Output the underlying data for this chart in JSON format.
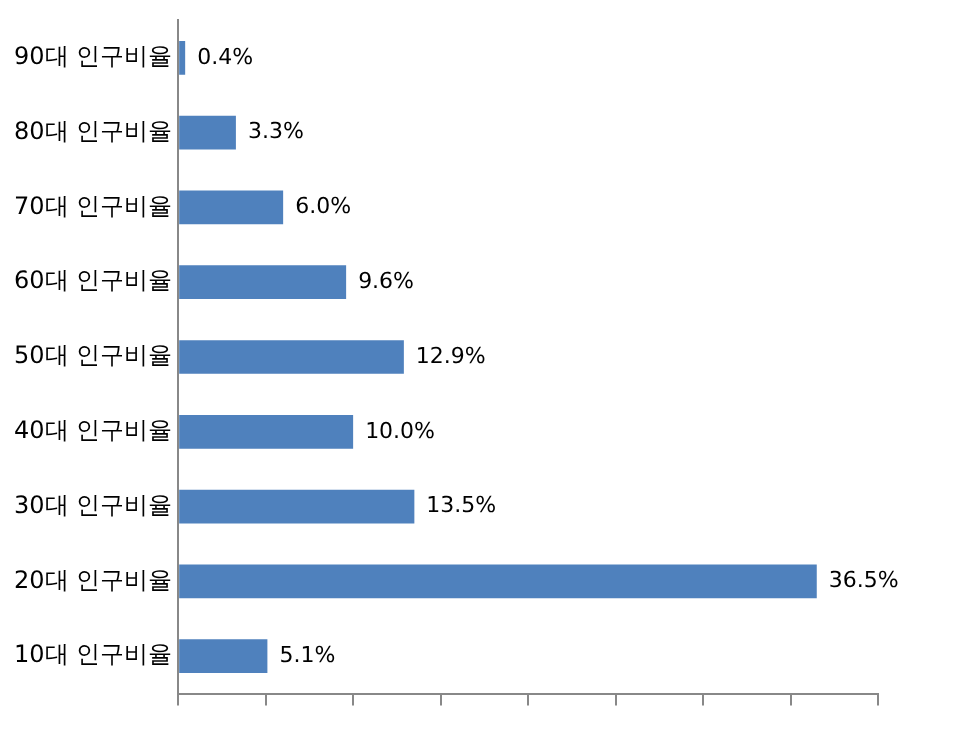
{
  "chart_data": {
    "type": "bar",
    "orientation": "horizontal",
    "categories": [
      "90대 인구비율",
      "80대 인구비율",
      "70대 인구비율",
      "60대 인구비율",
      "50대 인구비율",
      "40대 인구비율",
      "30대 인구비율",
      "20대 인구비율",
      "10대 인구비율"
    ],
    "values": [
      0.4,
      3.3,
      6.0,
      9.6,
      12.9,
      10.0,
      13.5,
      36.5,
      5.1
    ],
    "value_labels": [
      "0.4%",
      "3.3%",
      "6.0%",
      "9.6%",
      "12.9%",
      "10.0%",
      "13.5%",
      "36.5%",
      "5.1%"
    ],
    "color": "#4f81bd",
    "xlim": [
      0,
      40
    ],
    "tick_labels": "y",
    "grid": false,
    "legend": false
  }
}
